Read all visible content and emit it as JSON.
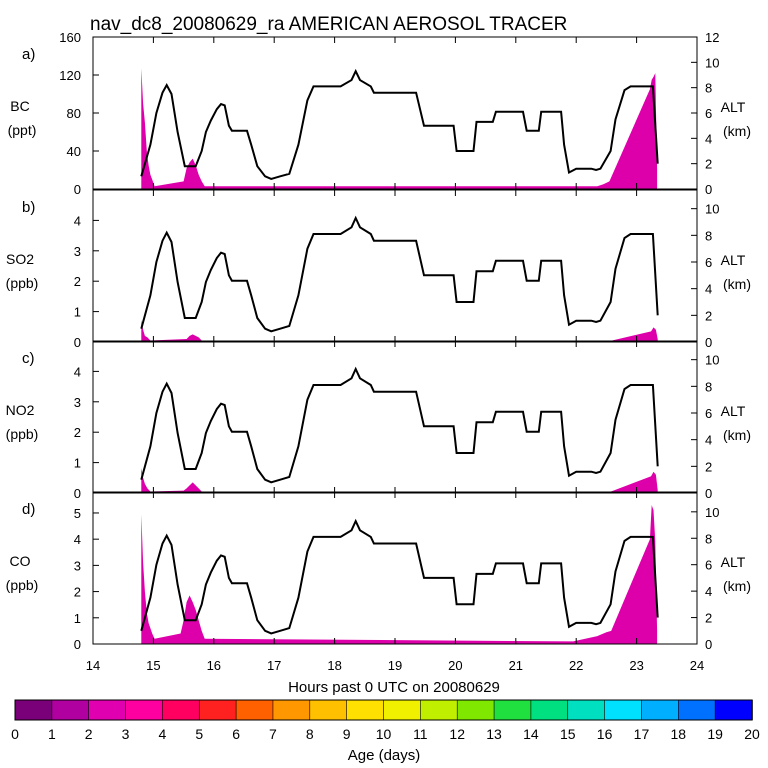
{
  "title": "nav_dc8_20080629_ra AMERICAN AEROSOL TRACER",
  "xlabel": "Hours past 0 UTC on 20080629",
  "x_ticks": [
    14,
    15,
    16,
    17,
    18,
    19,
    20,
    21,
    22,
    23,
    24
  ],
  "colorbar": {
    "label": "Age (days)",
    "ticks": [
      0,
      1,
      2,
      3,
      4,
      5,
      6,
      7,
      8,
      9,
      10,
      11,
      12,
      13,
      14,
      15,
      16,
      17,
      18,
      19,
      20
    ],
    "colors": [
      "#7a007a",
      "#b000a0",
      "#e000b0",
      "#ff00a0",
      "#ff0060",
      "#ff2020",
      "#ff6000",
      "#ff9800",
      "#ffc000",
      "#ffe000",
      "#f0f000",
      "#c0f000",
      "#80e800",
      "#20e040",
      "#00e080",
      "#00e0c0",
      "#00e0ff",
      "#00b0ff",
      "#0070ff",
      "#0000ff",
      "#7010f0"
    ]
  },
  "chart_data": {
    "type": "area",
    "altitude_series": {
      "name": "ALT (km)",
      "x": [
        14.8,
        14.95,
        15.05,
        15.15,
        15.22,
        15.3,
        15.4,
        15.52,
        15.7,
        15.8,
        15.87,
        15.95,
        16.05,
        16.12,
        16.18,
        16.25,
        16.3,
        16.55,
        16.62,
        16.72,
        16.85,
        16.95,
        17.1,
        17.25,
        17.4,
        17.55,
        17.65,
        18.1,
        18.28,
        18.35,
        18.42,
        18.6,
        18.65,
        19.35,
        19.48,
        19.97,
        20.02,
        20.3,
        20.35,
        20.62,
        20.67,
        21.12,
        21.18,
        21.38,
        21.42,
        21.75,
        21.8,
        21.88,
        22.0,
        22.25,
        22.33,
        22.4,
        22.57,
        22.65,
        22.8,
        22.9,
        23.0,
        23.27,
        23.35
      ],
      "y": [
        1.0,
        3.5,
        6.0,
        7.6,
        8.2,
        7.5,
        4.5,
        1.8,
        1.8,
        3.0,
        4.5,
        5.4,
        6.3,
        6.7,
        6.6,
        5.0,
        4.6,
        4.6,
        3.5,
        1.8,
        1.0,
        0.8,
        1.0,
        1.2,
        3.5,
        7.0,
        8.1,
        8.1,
        8.6,
        9.3,
        8.6,
        8.1,
        7.6,
        7.6,
        5.0,
        5.0,
        3.0,
        3.0,
        5.3,
        5.3,
        6.1,
        6.1,
        4.6,
        4.6,
        6.1,
        6.1,
        3.5,
        1.3,
        1.6,
        1.6,
        1.5,
        1.6,
        3.0,
        5.5,
        7.8,
        8.1,
        8.1,
        8.1,
        2.0
      ]
    },
    "panels": [
      {
        "letter": "a)",
        "species": "BC",
        "unit": "(ppt)",
        "ylim": [
          0,
          160
        ],
        "yticks": [
          0,
          40,
          80,
          120,
          160
        ],
        "alt_ticks": [
          0,
          2,
          4,
          6,
          8,
          10,
          12
        ],
        "alt_max": 12,
        "alt_label": "ALT",
        "alt_unit": "(km)",
        "tracer": {
          "x": [
            14.8,
            14.83,
            14.86,
            14.89,
            14.92,
            14.95,
            14.98,
            15.02,
            15.5,
            15.55,
            15.6,
            15.65,
            15.7,
            15.75,
            15.8,
            15.85,
            22.35,
            22.45,
            22.55,
            23.22,
            23.25,
            23.28,
            23.31,
            23.34
          ],
          "y": [
            127,
            90,
            70,
            40,
            25,
            15,
            10,
            3,
            8,
            22,
            28,
            32,
            25,
            15,
            8,
            3,
            3,
            5,
            8,
            105,
            115,
            118,
            122,
            20
          ]
        }
      },
      {
        "letter": "b)",
        "species": "SO2",
        "unit": "(ppb)",
        "ylim": [
          0,
          5
        ],
        "yticks": [
          0,
          1,
          2,
          3,
          4
        ],
        "alt_ticks": [
          0,
          2,
          4,
          6,
          8,
          10
        ],
        "alt_max": 11.4,
        "alt_label": "ALT",
        "alt_unit": "(km)",
        "tracer": {
          "x": [
            14.8,
            14.83,
            14.86,
            14.9,
            14.95,
            15.55,
            15.6,
            15.65,
            15.7,
            15.75,
            15.8,
            22.45,
            22.55,
            23.24,
            23.28,
            23.32,
            23.35
          ],
          "y": [
            0.72,
            0.4,
            0.2,
            0.15,
            0.05,
            0.1,
            0.2,
            0.25,
            0.2,
            0.15,
            0.05,
            0.02,
            0.03,
            0.35,
            0.48,
            0.4,
            0.1
          ]
        }
      },
      {
        "letter": "c)",
        "species": "NO2",
        "unit": "(ppb)",
        "ylim": [
          0,
          5
        ],
        "yticks": [
          0,
          1,
          2,
          3,
          4
        ],
        "alt_ticks": [
          0,
          2,
          4,
          6,
          8,
          10
        ],
        "alt_max": 11.4,
        "alt_label": "ALT",
        "alt_unit": "(km)",
        "tracer": {
          "x": [
            14.8,
            14.83,
            14.86,
            14.9,
            14.95,
            15.5,
            15.55,
            15.6,
            15.65,
            15.7,
            15.75,
            15.8,
            22.45,
            22.55,
            23.24,
            23.28,
            23.32,
            23.35
          ],
          "y": [
            0.82,
            0.5,
            0.3,
            0.15,
            0.05,
            0.08,
            0.15,
            0.25,
            0.35,
            0.25,
            0.15,
            0.05,
            0.02,
            0.03,
            0.55,
            0.7,
            0.6,
            0.1
          ]
        }
      },
      {
        "letter": "d)",
        "species": "CO",
        "unit": "(ppb)",
        "ylim": [
          0,
          5.8
        ],
        "yticks": [
          0,
          1,
          2,
          3,
          4,
          5
        ],
        "alt_ticks": [
          0,
          2,
          4,
          6,
          8,
          10
        ],
        "alt_max": 11.5,
        "alt_label": "ALT",
        "alt_unit": "(km)",
        "tracer": {
          "x": [
            14.8,
            14.83,
            14.86,
            14.89,
            14.92,
            14.95,
            14.98,
            15.02,
            15.45,
            15.5,
            15.55,
            15.6,
            15.65,
            15.7,
            15.75,
            15.8,
            15.85,
            21.95,
            22.15,
            22.35,
            22.5,
            22.58,
            23.22,
            23.25,
            23.28,
            23.31,
            23.34
          ],
          "y": [
            4.95,
            3.1,
            2.0,
            1.2,
            0.8,
            0.6,
            0.4,
            0.2,
            0.4,
            0.9,
            1.6,
            1.85,
            1.6,
            1.3,
            0.9,
            0.5,
            0.2,
            0.1,
            0.2,
            0.3,
            0.45,
            0.5,
            4.0,
            5.3,
            5.1,
            3.9,
            0.5
          ]
        }
      }
    ]
  }
}
